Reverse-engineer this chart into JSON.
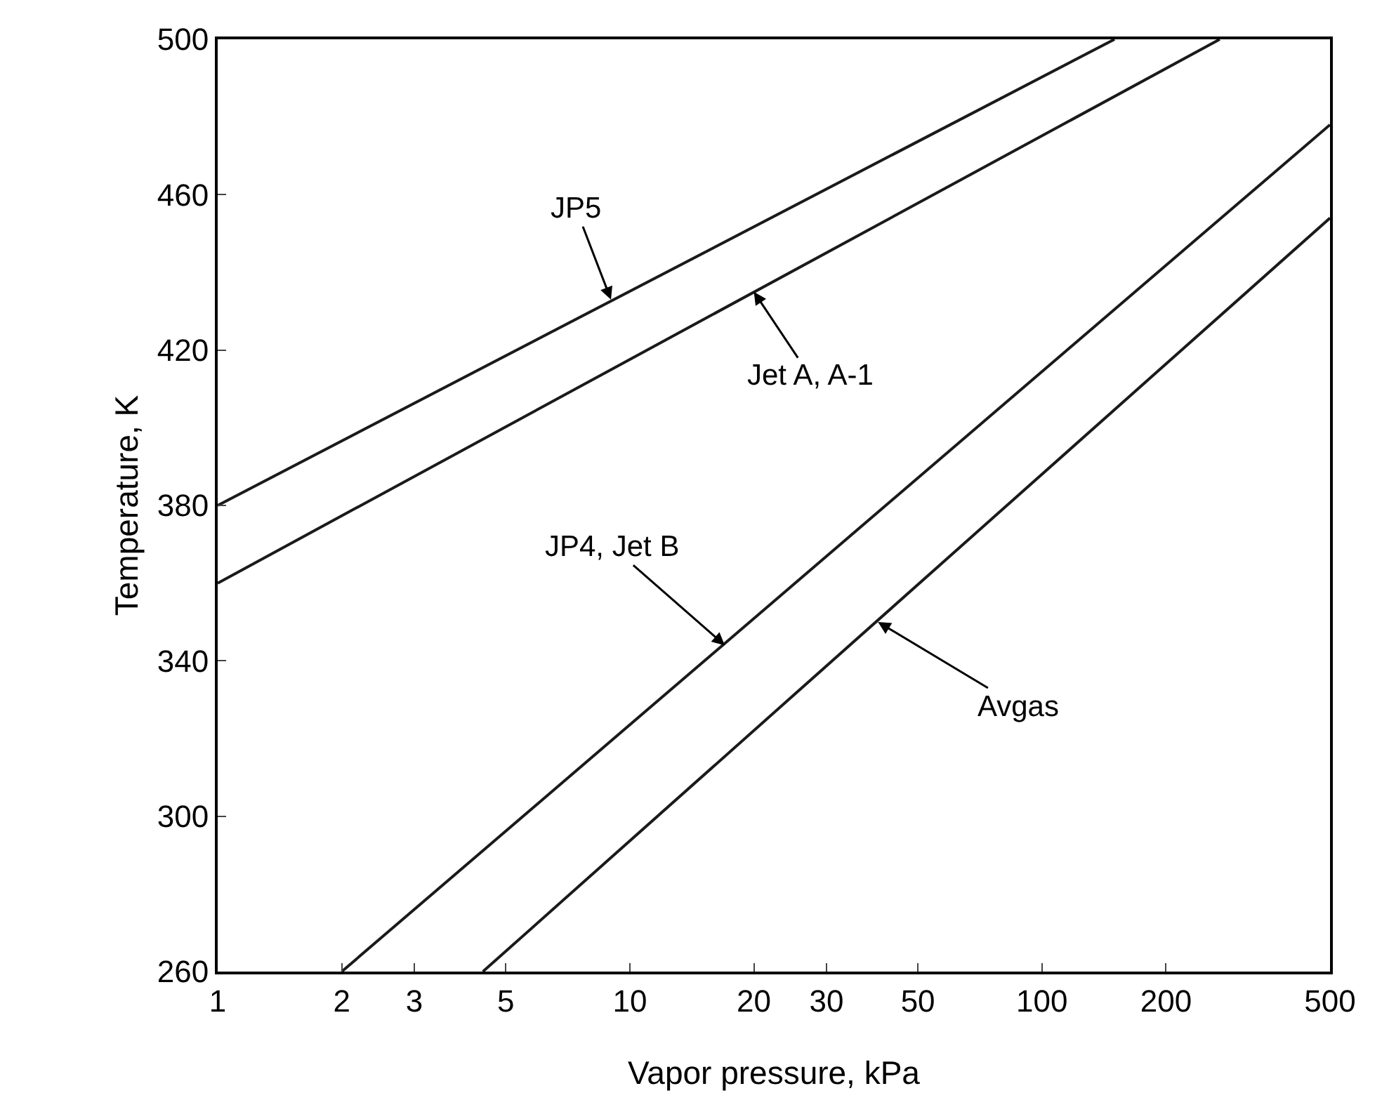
{
  "chart_data": {
    "type": "line",
    "xlabel": "Vapor pressure, kPa",
    "ylabel": "Temperature, K",
    "log": "x",
    "grid": false,
    "marker": "none",
    "line_style": "solid",
    "xlim": [
      1,
      500
    ],
    "xticks": [
      1,
      2,
      3,
      5,
      10,
      20,
      30,
      50,
      100,
      200,
      500
    ],
    "ylim": [
      260,
      500
    ],
    "yticks": [
      260,
      300,
      340,
      380,
      420,
      460,
      500
    ],
    "series": [
      {
        "color": "#1a1a1a",
        "x": [
          1,
          150
        ],
        "values": [
          380,
          500
        ]
      },
      {
        "color": "#1a1a1a",
        "x": [
          1,
          270
        ],
        "values": [
          360,
          500
        ]
      },
      {
        "color": "#1a1a1a",
        "x": [
          2,
          500
        ],
        "values": [
          260,
          478
        ]
      },
      {
        "color": "#1a1a1a",
        "x": [
          4.4,
          500
        ],
        "values": [
          260,
          454
        ]
      }
    ],
    "annotations": [
      {
        "text": "JP5",
        "x": 9,
        "y": 433
      },
      {
        "text": "Jet A, A-1",
        "x": 20,
        "y": 435
      },
      {
        "text": "JP4, Jet B",
        "x": 17,
        "y": 344
      },
      {
        "text": "Avgas",
        "x": 40,
        "y": 350
      }
    ]
  }
}
